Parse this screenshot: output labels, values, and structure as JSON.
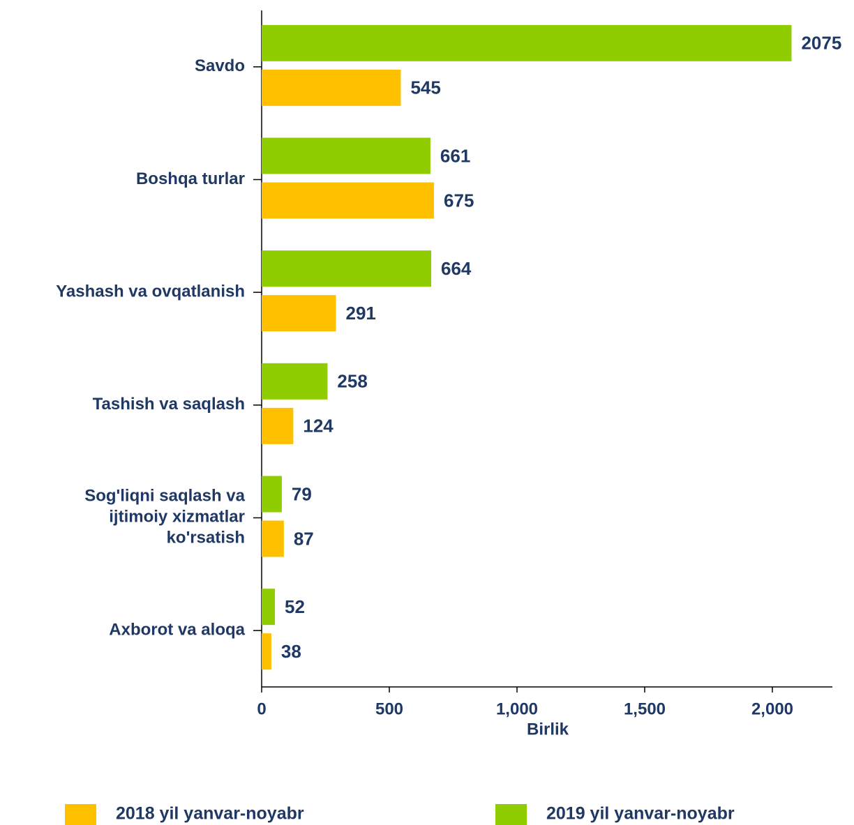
{
  "chart_data": {
    "type": "bar",
    "orientation": "horizontal",
    "categories": [
      "Savdo",
      "Boshqa turlar",
      "Yashash va ovqatlanish",
      "Tashish va saqlash",
      "Sog'liqni saqlash va\nijtimoiy xizmatlar\nko'rsatish",
      "Axborot va aloqa"
    ],
    "series": [
      {
        "name": "2019 yil yanvar-noyabr",
        "color": "#8fcc00",
        "values": [
          2075,
          661,
          664,
          258,
          79,
          52
        ]
      },
      {
        "name": "2018 yil yanvar-noyabr",
        "color": "#ffc000",
        "values": [
          545,
          675,
          291,
          124,
          87,
          38
        ]
      }
    ],
    "xlabel": "Birlik",
    "xlim": [
      0,
      2235
    ],
    "xticks": [
      0,
      500,
      {
        "value": 1000,
        "label": "1,000"
      },
      {
        "value": 1500,
        "label": "1,500"
      },
      {
        "value": 2000,
        "label": "2,000"
      }
    ],
    "legend": "bottom"
  }
}
